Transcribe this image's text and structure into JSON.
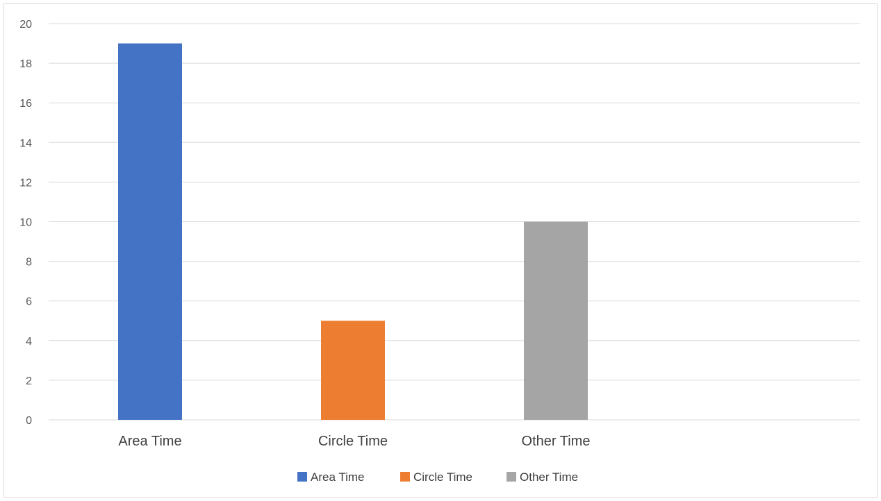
{
  "chart_data": {
    "type": "bar",
    "categories": [
      "Area Time",
      "Circle Time",
      "Other Time"
    ],
    "series": [
      {
        "name": "Area Time",
        "color": "#4472C4",
        "values": [
          19,
          null,
          null
        ]
      },
      {
        "name": "Circle Time",
        "color": "#ED7D31",
        "values": [
          null,
          5,
          null
        ]
      },
      {
        "name": "Other Time",
        "color": "#A5A5A5",
        "values": [
          null,
          null,
          10
        ]
      }
    ],
    "values": [
      19,
      5,
      10
    ],
    "ylim": [
      0,
      20
    ],
    "yticks": [
      0,
      2,
      4,
      6,
      8,
      10,
      12,
      14,
      16,
      18,
      20
    ],
    "grid": true,
    "legend": "bottom",
    "title": "",
    "xlabel": "",
    "ylabel": ""
  }
}
